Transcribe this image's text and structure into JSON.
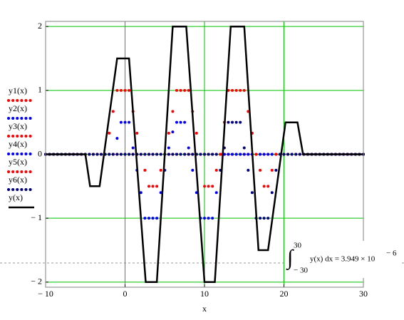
{
  "chart_data": {
    "type": "line",
    "x_label": "x",
    "xlim": [
      -10,
      30
    ],
    "ylim": [
      -2.08,
      2.08
    ],
    "xticks": [
      {
        "value": -10,
        "label": "− 10"
      },
      0,
      10,
      20,
      30
    ],
    "yticks": [
      {
        "value": -2,
        "label": "− 2"
      },
      {
        "value": -1,
        "label": "− 1"
      },
      0,
      1,
      2
    ],
    "grid": true,
    "grid_color": "#00c000",
    "legend": "left",
    "x": [
      -10,
      -9.5,
      -9,
      -8.5,
      -8,
      -7.5,
      -7,
      -6.5,
      -6,
      -5.5,
      -5,
      -4.5,
      -4,
      -3.5,
      -3,
      -2.5,
      -2,
      -1.5,
      -1,
      -0.5,
      0,
      0.5,
      1,
      1.5,
      2,
      2.5,
      3,
      3.5,
      4,
      4.5,
      5,
      5.5,
      6,
      6.5,
      7,
      7.5,
      8,
      8.5,
      9,
      9.5,
      10,
      10.5,
      11,
      11.5,
      12,
      12.5,
      13,
      13.5,
      14,
      14.5,
      15,
      15.5,
      16,
      16.5,
      17,
      17.5,
      18,
      18.5,
      19,
      19.5,
      20,
      20.5,
      21,
      21.5,
      22,
      22.5,
      23,
      23.5,
      24,
      24.5,
      25,
      25.5,
      26,
      26.5,
      27,
      27.5,
      28,
      28.5,
      29,
      29.5,
      30
    ],
    "series": [
      {
        "name": "y1(x)",
        "color": "#ff0000",
        "style": "dots",
        "values": [
          0,
          0,
          0,
          0,
          0,
          0,
          0,
          0,
          0,
          0,
          0,
          0,
          0,
          0,
          0,
          0,
          0.33,
          0.67,
          1,
          1,
          1,
          1,
          0.67,
          0.33,
          0,
          -0.25,
          -0.5,
          -0.5,
          -0.5,
          -0.25,
          0,
          0,
          0,
          0,
          0,
          0,
          0,
          0,
          0,
          0,
          0,
          0,
          0,
          0,
          0,
          0,
          0,
          0,
          0,
          0,
          0,
          0,
          0,
          0,
          0,
          0,
          0,
          0,
          0,
          0,
          0,
          0,
          0,
          0,
          0,
          0,
          0,
          0,
          0,
          0,
          0,
          0,
          0,
          0,
          0,
          0,
          0,
          0,
          0,
          0,
          0
        ]
      },
      {
        "name": "y2(x)",
        "color": "#0000ff",
        "style": "dots",
        "values": [
          0,
          0,
          0,
          0,
          0,
          0,
          0,
          0,
          0,
          0,
          0,
          0,
          0,
          0,
          0,
          0,
          0,
          0,
          0.25,
          0.5,
          0.5,
          0.5,
          0.1,
          -0.25,
          -0.6,
          -1,
          -1,
          -1,
          -1,
          -0.6,
          0,
          0,
          0,
          0,
          0,
          0,
          0,
          0,
          0,
          0,
          0,
          0,
          0,
          0,
          0,
          0,
          0,
          0,
          0,
          0,
          0,
          0,
          0,
          0,
          0,
          0,
          0,
          0,
          0,
          0,
          0,
          0,
          0,
          0,
          0,
          0,
          0,
          0,
          0,
          0,
          0,
          0,
          0,
          0,
          0,
          0,
          0,
          0,
          0,
          0,
          0
        ]
      },
      {
        "name": "y3(x)",
        "color": "#ff0000",
        "style": "dots",
        "values": [
          0,
          0,
          0,
          0,
          0,
          0,
          0,
          0,
          0,
          0,
          0,
          0,
          0,
          0,
          0,
          0,
          0,
          0,
          0,
          0,
          0,
          0,
          0,
          0,
          0,
          0,
          0,
          0,
          0,
          0,
          0,
          0.33,
          0.67,
          1,
          1,
          1,
          1,
          0.67,
          0.33,
          0,
          -0.5,
          -0.5,
          -0.5,
          -0.25,
          0,
          0,
          0,
          0,
          0,
          0,
          0,
          0,
          0,
          0,
          0,
          0,
          0,
          0,
          0,
          0,
          0,
          0,
          0,
          0,
          0,
          0,
          0,
          0,
          0,
          0,
          0,
          0,
          0,
          0,
          0,
          0,
          0,
          0,
          0,
          0,
          0
        ]
      },
      {
        "name": "y4(x)",
        "color": "#0000ff",
        "style": "dots",
        "values": [
          0,
          0,
          0,
          0,
          0,
          0,
          0,
          0,
          0,
          0,
          0,
          0,
          0,
          0,
          0,
          0,
          0,
          0,
          0,
          0,
          0,
          0,
          0,
          0,
          0,
          0,
          0,
          0,
          0,
          0,
          -0.25,
          0.1,
          0.35,
          0.5,
          0.5,
          0.5,
          0.1,
          -0.25,
          -0.6,
          -1,
          -1,
          -1,
          -1,
          -0.6,
          0,
          0,
          0,
          0,
          0,
          0,
          0,
          0,
          0,
          0,
          0,
          0,
          0,
          0,
          0,
          0,
          0,
          0,
          0,
          0,
          0,
          0,
          0,
          0,
          0,
          0,
          0,
          0,
          0,
          0,
          0,
          0,
          0,
          0,
          0,
          0,
          0
        ]
      },
      {
        "name": "y5(x)",
        "color": "#ff0000",
        "style": "dots",
        "values": [
          0,
          0,
          0,
          0,
          0,
          0,
          0,
          0,
          0,
          0,
          0,
          0,
          0,
          0,
          0,
          0,
          0,
          0,
          0,
          0,
          0,
          0,
          0,
          0,
          0,
          0,
          0,
          0,
          0,
          0,
          0,
          0,
          0,
          0,
          0,
          0,
          0,
          0,
          0,
          0,
          0,
          0,
          0,
          0,
          0,
          0.5,
          1,
          1,
          1,
          1,
          1,
          0.67,
          0.33,
          0,
          -0.25,
          -0.5,
          -0.5,
          -0.25,
          0,
          0,
          0,
          0,
          0,
          0,
          0,
          0,
          0,
          0,
          0,
          0,
          0,
          0,
          0,
          0,
          0,
          0,
          0,
          0,
          0,
          0,
          0
        ]
      },
      {
        "name": "y6(x)",
        "color": "#000080",
        "style": "dots",
        "values": [
          0,
          0,
          0,
          0,
          0,
          0,
          0,
          0,
          0,
          0,
          0,
          0,
          0,
          0,
          0,
          0,
          0,
          0,
          0,
          0,
          0,
          0,
          0,
          0,
          0,
          0,
          0,
          0,
          0,
          0,
          0,
          0,
          0,
          0,
          0,
          0,
          0,
          0,
          0,
          0,
          0,
          0,
          0,
          0,
          -0.25,
          0.1,
          0.5,
          0.5,
          0.5,
          0.5,
          0.1,
          -0.25,
          -0.6,
          -1,
          -1,
          -1,
          -1,
          -0.6,
          -0.25,
          0,
          0,
          0,
          0,
          0,
          0,
          0,
          0,
          0,
          0,
          0,
          0,
          0,
          0,
          0,
          0,
          0,
          0,
          0,
          0,
          0,
          0
        ]
      },
      {
        "name": "y(x)",
        "color": "#000000",
        "style": "line",
        "x": [
          -10,
          -5,
          -4.4,
          -3.2,
          -1,
          0.5,
          2.6,
          4,
          6,
          7.7,
          10,
          11.3,
          13.3,
          15,
          16.8,
          18,
          20.2,
          21.7,
          22.4,
          30
        ],
        "values": [
          0,
          0,
          -0.5,
          -0.5,
          1.5,
          1.5,
          -2,
          -2,
          2,
          2,
          -2,
          -2,
          2,
          2,
          -1.5,
          -1.5,
          0.5,
          0.5,
          0,
          0
        ]
      }
    ],
    "annotation": {
      "upper": "30",
      "lower": "− 30",
      "expression": "y(x) dx = 3.949 × 10",
      "exponent": "− 6"
    }
  }
}
